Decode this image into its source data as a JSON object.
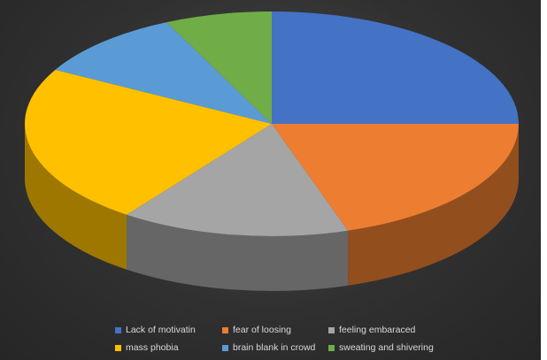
{
  "chart_data": {
    "type": "pie",
    "style": "3d",
    "title": "",
    "slices": [
      {
        "label": "Lack of motivatin",
        "value": 25,
        "color": "#4472C4"
      },
      {
        "label": "fear of loosing",
        "value": 20,
        "color": "#ED7D31"
      },
      {
        "label": "feeling embaraced",
        "value": 15,
        "color": "#A5A5A5"
      },
      {
        "label": "mass phobia",
        "value": 23,
        "color": "#FFC000"
      },
      {
        "label": "brain blank in crowd",
        "value": 10,
        "color": "#5B9BD5"
      },
      {
        "label": "sweating and shivering",
        "value": 7,
        "color": "#70AD47"
      }
    ],
    "legend_position": "bottom",
    "background": "#303030"
  }
}
